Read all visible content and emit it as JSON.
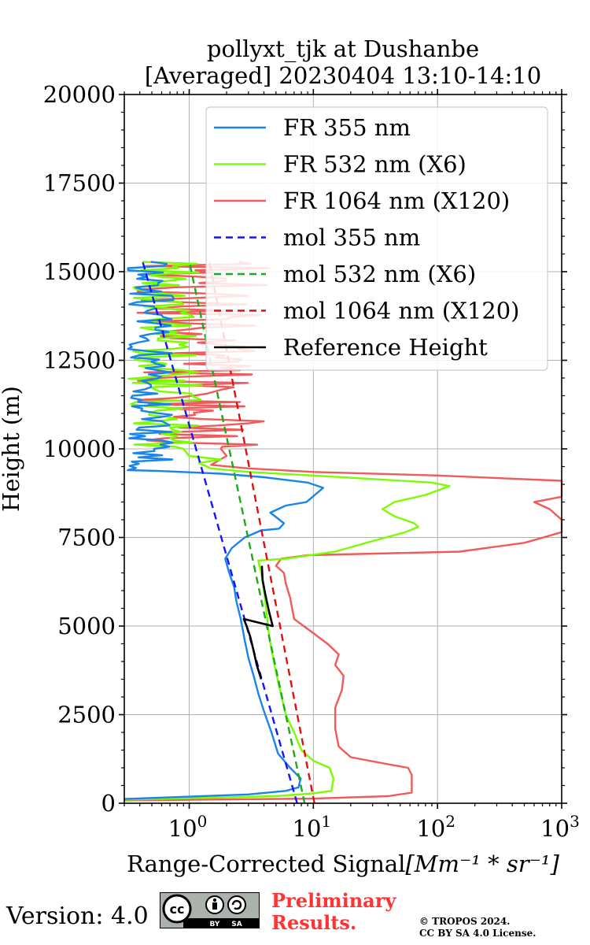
{
  "chart_data": {
    "type": "line",
    "title_line1": "pollyxt_tjk at Dushanbe",
    "title_line2": "[Averaged] 20230404 13:10-14:10",
    "xlabel": "Range-Corrected Signal",
    "xlabel_units": "[Mm⁻¹ * sr⁻¹]",
    "ylabel": "Height (m)",
    "xscale": "log",
    "xlim": [
      0.3,
      1000
    ],
    "ylim": [
      0,
      20000
    ],
    "x_ticks": [
      {
        "v": 1,
        "base": "10",
        "exp": "0"
      },
      {
        "v": 10,
        "base": "10",
        "exp": "1"
      },
      {
        "v": 100,
        "base": "10",
        "exp": "2"
      },
      {
        "v": 1000,
        "base": "10",
        "exp": "3"
      }
    ],
    "y_ticks": [
      0,
      2500,
      5000,
      7500,
      10000,
      12500,
      15000,
      17500,
      20000
    ],
    "y_tick_labels": [
      "0",
      "2500",
      "5000",
      "7500",
      "10000",
      "12500",
      "15000",
      "17500",
      "20000"
    ],
    "grid": true,
    "legend_position": "top-right",
    "series": [
      {
        "name": "FR 355 nm",
        "color": "#1a84ea",
        "style": "solid",
        "points": [
          [
            0.3,
            120
          ],
          [
            3.0,
            250
          ],
          [
            6.0,
            350
          ],
          [
            7.6,
            450
          ],
          [
            7.9,
            700
          ],
          [
            6.5,
            1000
          ],
          [
            5.2,
            1400
          ],
          [
            4.6,
            2000
          ],
          [
            4.0,
            2600
          ],
          [
            3.6,
            3100
          ],
          [
            3.3,
            3600
          ],
          [
            3.0,
            4100
          ],
          [
            2.8,
            4600
          ],
          [
            2.6,
            5200
          ],
          [
            2.4,
            5700
          ],
          [
            2.3,
            6100
          ],
          [
            2.1,
            6500
          ],
          [
            1.95,
            6900
          ],
          [
            2.2,
            7200
          ],
          [
            2.8,
            7500
          ],
          [
            3.8,
            7700
          ],
          [
            5.3,
            7750
          ],
          [
            5.8,
            7900
          ],
          [
            4.9,
            8100
          ],
          [
            4.5,
            8200
          ],
          [
            6.0,
            8400
          ],
          [
            8.8,
            8500
          ],
          [
            12.0,
            8900
          ],
          [
            9.0,
            9050
          ],
          [
            4.0,
            9200
          ],
          [
            1.8,
            9300
          ],
          [
            0.55,
            9380
          ],
          [
            0.32,
            9400
          ]
        ]
      },
      {
        "name": "FR 532 nm (X6)",
        "color": "#7cfc00",
        "style": "solid",
        "points": [
          [
            0.3,
            100
          ],
          [
            5.0,
            200
          ],
          [
            10.0,
            280
          ],
          [
            14.0,
            350
          ],
          [
            14.5,
            700
          ],
          [
            13.5,
            1000
          ],
          [
            10.0,
            1200
          ],
          [
            8.0,
            1500
          ],
          [
            7.0,
            2000
          ],
          [
            6.0,
            2500
          ],
          [
            5.3,
            3300
          ],
          [
            4.8,
            4000
          ],
          [
            4.4,
            4700
          ],
          [
            4.2,
            5400
          ],
          [
            4.0,
            6000
          ],
          [
            3.8,
            6500
          ],
          [
            3.6,
            6850
          ],
          [
            6.0,
            6900
          ],
          [
            15.0,
            7100
          ],
          [
            30.0,
            7400
          ],
          [
            55.0,
            7650
          ],
          [
            70.0,
            7800
          ],
          [
            65.0,
            7900
          ],
          [
            45.0,
            8100
          ],
          [
            36.0,
            8300
          ],
          [
            45.0,
            8500
          ],
          [
            80.0,
            8700
          ],
          [
            125.0,
            8950
          ],
          [
            90.0,
            9050
          ],
          [
            30.0,
            9150
          ],
          [
            10.0,
            9250
          ],
          [
            3.0,
            9350
          ],
          [
            1.5,
            9450
          ],
          [
            1.2,
            9600
          ],
          [
            1.8,
            9700
          ],
          [
            1.0,
            9800
          ],
          [
            0.9,
            10000
          ]
        ]
      },
      {
        "name": "FR 1064 nm (X120)",
        "color": "#f05a5a",
        "style": "solid",
        "points": [
          [
            0.3,
            80
          ],
          [
            10.0,
            130
          ],
          [
            40.0,
            200
          ],
          [
            62.0,
            300
          ],
          [
            62.0,
            800
          ],
          [
            58.0,
            1000
          ],
          [
            40.0,
            1100
          ],
          [
            20.0,
            1300
          ],
          [
            16.0,
            1600
          ],
          [
            15.0,
            2100
          ],
          [
            15.0,
            2700
          ],
          [
            17.0,
            3200
          ],
          [
            17.5,
            3600
          ],
          [
            15.0,
            3900
          ],
          [
            16.0,
            4200
          ],
          [
            13.0,
            4500
          ],
          [
            10.0,
            4800
          ],
          [
            7.0,
            5200
          ],
          [
            6.5,
            5800
          ],
          [
            6.0,
            6200
          ],
          [
            5.8,
            6500
          ],
          [
            5.0,
            6700
          ],
          [
            5.5,
            6900
          ],
          [
            9.0,
            7000
          ],
          [
            150.0,
            7100
          ],
          [
            500.0,
            7350
          ],
          [
            1000.0,
            7650
          ],
          [
            1000.0,
            8000
          ],
          [
            800.0,
            8300
          ],
          [
            600.0,
            8500
          ],
          [
            1000.0,
            8650
          ],
          [
            1000.0,
            9100
          ],
          [
            100.0,
            9250
          ],
          [
            10.0,
            9350
          ],
          [
            3.0,
            9450
          ],
          [
            1.5,
            9550
          ],
          [
            2.0,
            9800
          ],
          [
            1.8,
            10000
          ]
        ]
      },
      {
        "name": "mol 355 nm",
        "color": "#1414ff",
        "style": "dashed",
        "points": [
          [
            7.4,
            0
          ],
          [
            0.42,
            15300
          ]
        ]
      },
      {
        "name": "mol 532 nm (X6)",
        "color": "#1aab1a",
        "style": "dashed",
        "points": [
          [
            8.5,
            0
          ],
          [
            1.0,
            15300
          ]
        ]
      },
      {
        "name": "mol 1064 nm (X120)",
        "color": "#e01010",
        "style": "dashed",
        "points": [
          [
            10.2,
            0
          ],
          [
            1.45,
            15300
          ]
        ]
      },
      {
        "name": "Reference Height",
        "color": "#000000",
        "style": "solid",
        "points": [
          [
            3.8,
            3500
          ],
          [
            3.5,
            3900
          ],
          [
            3.3,
            4300
          ],
          [
            3.1,
            4700
          ],
          [
            2.9,
            5000
          ],
          [
            2.75,
            5200
          ],
          [
            4.7,
            5000
          ],
          [
            4.4,
            5400
          ],
          [
            4.1,
            5900
          ],
          [
            3.9,
            6300
          ],
          [
            3.85,
            6700
          ]
        ]
      }
    ],
    "noise_region": {
      "y_min": 9400,
      "y_max": 15300
    }
  },
  "footer": {
    "version_text": "Version: 4.0",
    "badge_cc": "cc",
    "badge_by": "BY",
    "badge_sa": "SA",
    "preliminary_line1": "Preliminary",
    "preliminary_line2": "Results.",
    "copyright_line1": "© TROPOS 2024.",
    "copyright_line2": "CC BY SA 4.0 License."
  }
}
